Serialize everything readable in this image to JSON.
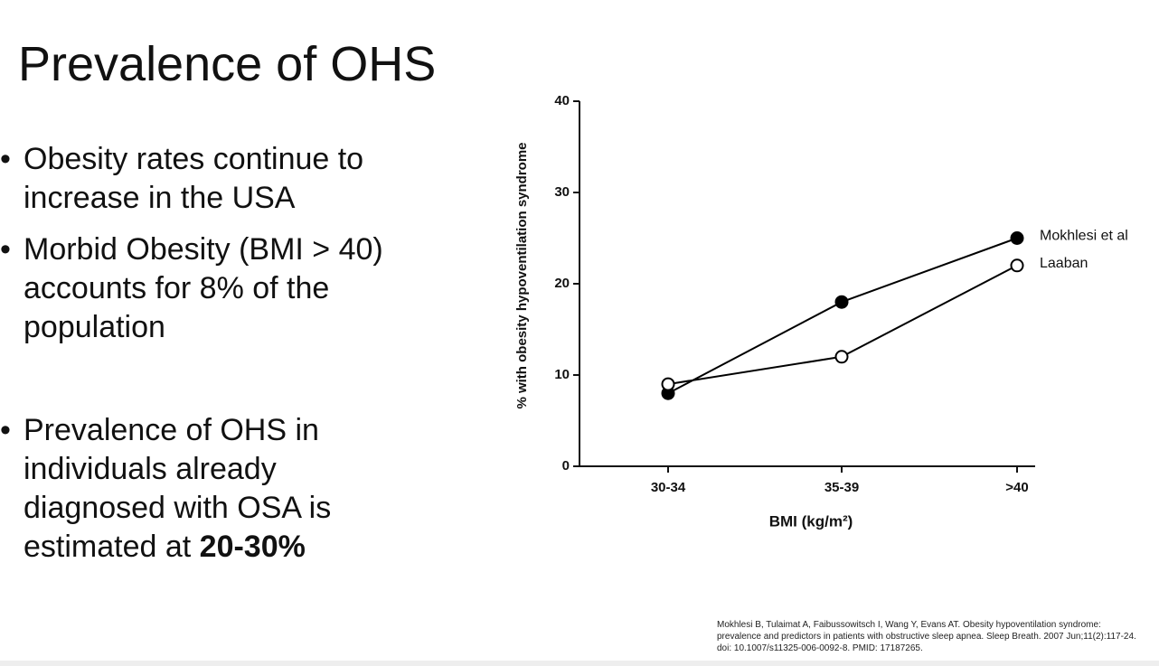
{
  "slide": {
    "title": "Prevalence of OHS",
    "bullets": [
      {
        "text": "Obesity rates continue to increase in the USA"
      },
      {
        "text": "Morbid Obesity (BMI > 40) accounts for 8% of the population"
      },
      {
        "text": "Prevalence of OHS in individuals already diagnosed with OSA is estimated at ",
        "bold": "20-30%"
      }
    ],
    "citation": "Mokhlesi B, Tulaimat A, Faibussowitsch I, Wang Y, Evans AT. Obesity hypoventilation syndrome: prevalence and predictors in patients with obstructive sleep apnea. Sleep Breath. 2007 Jun;11(2):117-24. doi: 10.1007/s11325-006-0092-8. PMID: 17187265."
  },
  "chart_data": {
    "type": "line",
    "x_label": "BMI (kg/m²)",
    "y_label": "% with obesity hypoventilation syndrome",
    "categories": [
      "30-34",
      "35-39",
      ">40"
    ],
    "series": [
      {
        "name": "Mokhlesi et al",
        "color": "#000000",
        "marker": "filled",
        "values": [
          8,
          18,
          25
        ]
      },
      {
        "name": "Laaban",
        "color": "#000000",
        "marker": "open",
        "values": [
          9,
          12,
          22
        ]
      }
    ],
    "ylim": [
      0,
      40
    ],
    "yticks": [
      0,
      10,
      20,
      30,
      40
    ],
    "grid": false
  }
}
